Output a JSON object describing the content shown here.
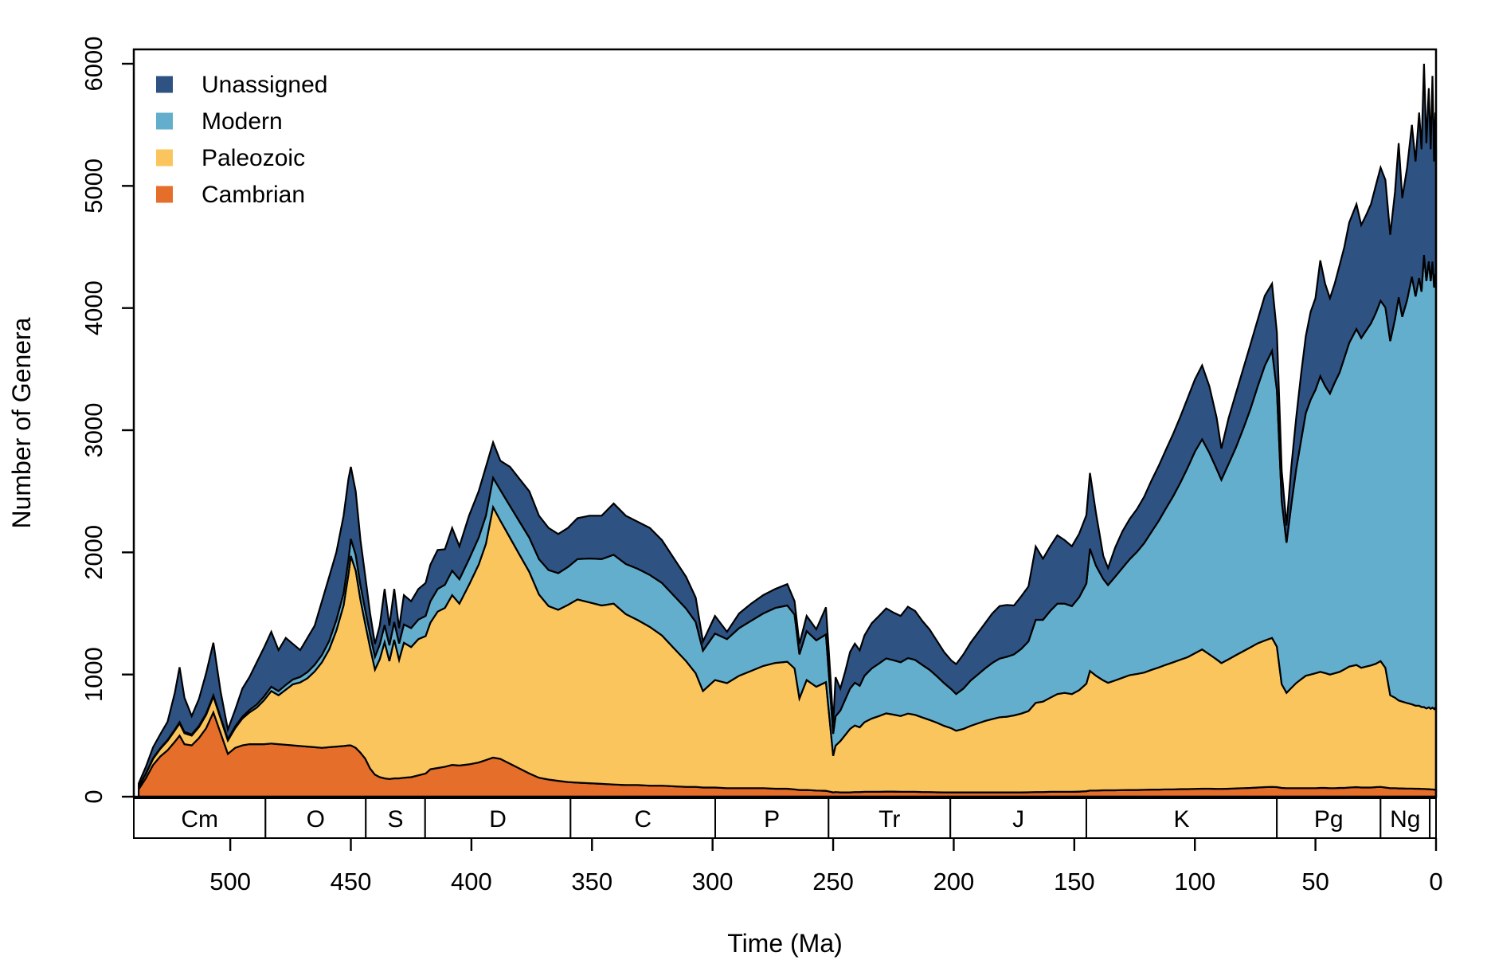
{
  "figure": {
    "background": "#ffffff",
    "frame_color": "#000000",
    "outline_color": "#000000"
  },
  "legend": {
    "position": "top-left",
    "items": [
      {
        "label": "Unassigned",
        "color": "#2E5282"
      },
      {
        "label": "Modern",
        "color": "#64AECD"
      },
      {
        "label": "Paleozoic",
        "color": "#FBC55E"
      },
      {
        "label": "Cambrian",
        "color": "#E56E2B"
      }
    ]
  },
  "axes": {
    "x": {
      "title": "Time (Ma)",
      "tick_values": [
        500,
        450,
        400,
        350,
        300,
        250,
        200,
        150,
        100,
        50,
        0
      ],
      "tick_labels": [
        "500",
        "450",
        "400",
        "350",
        "300",
        "250",
        "200",
        "150",
        "100",
        "50",
        "0"
      ]
    },
    "y": {
      "title": "Number of Genera",
      "tick_values": [
        0,
        1000,
        2000,
        3000,
        4000,
        5000,
        6000
      ],
      "tick_labels": [
        "0",
        "1000",
        "2000",
        "3000",
        "4000",
        "5000",
        "6000"
      ]
    }
  },
  "period_strip": {
    "periods": [
      {
        "label": "Cm",
        "from": 540.0,
        "to": 485.4
      },
      {
        "label": "O",
        "from": 485.4,
        "to": 443.8
      },
      {
        "label": "S",
        "from": 443.8,
        "to": 419.2
      },
      {
        "label": "D",
        "from": 419.2,
        "to": 358.9
      },
      {
        "label": "C",
        "from": 358.9,
        "to": 298.9
      },
      {
        "label": "P",
        "from": 298.9,
        "to": 251.9
      },
      {
        "label": "Tr",
        "from": 251.9,
        "to": 201.4
      },
      {
        "label": "J",
        "from": 201.4,
        "to": 145.0
      },
      {
        "label": "K",
        "from": 145.0,
        "to": 66.0
      },
      {
        "label": "Pg",
        "from": 66.0,
        "to": 23.0
      },
      {
        "label": "Ng",
        "from": 23.0,
        "to": 2.6
      },
      {
        "label": "",
        "from": 2.6,
        "to": 0.0
      }
    ]
  },
  "chart_data": {
    "type": "area",
    "stacked": true,
    "title": "",
    "xlabel": "Time (Ma)",
    "ylabel": "Number of Genera",
    "xlim": [
      540,
      0
    ],
    "ylim": [
      0,
      6120
    ],
    "x_axis_reversed": true,
    "grid": false,
    "legend_position": "top-left",
    "x_ticks": [
      500,
      450,
      400,
      350,
      300,
      250,
      200,
      150,
      100,
      50,
      0
    ],
    "y_ticks": [
      0,
      1000,
      2000,
      3000,
      4000,
      5000,
      6000
    ],
    "stack_order_bottom_to_top": [
      "Cambrian",
      "Paleozoic",
      "Modern",
      "Unassigned"
    ],
    "series_colors": {
      "Cambrian": "#E56E2B",
      "Paleozoic": "#FBC55E",
      "Modern": "#64AECD",
      "Unassigned": "#2E5282"
    },
    "columns": [
      "age_ma",
      "cambrian",
      "paleozoic",
      "modern",
      "unassigned"
    ],
    "points": [
      [
        538,
        60,
        20,
        3,
        25
      ],
      [
        535,
        150,
        35,
        4,
        55
      ],
      [
        532,
        260,
        50,
        5,
        90
      ],
      [
        529,
        330,
        62,
        5,
        115
      ],
      [
        526,
        380,
        78,
        6,
        150
      ],
      [
        523,
        450,
        92,
        8,
        300
      ],
      [
        521,
        500,
        100,
        10,
        450
      ],
      [
        519,
        430,
        90,
        10,
        280
      ],
      [
        516,
        420,
        80,
        10,
        150
      ],
      [
        513,
        480,
        90,
        10,
        220
      ],
      [
        510,
        560,
        110,
        10,
        330
      ],
      [
        507,
        690,
        130,
        10,
        430
      ],
      [
        504,
        520,
        120,
        10,
        210
      ],
      [
        501,
        350,
        110,
        10,
        80
      ],
      [
        498,
        400,
        160,
        15,
        135
      ],
      [
        495,
        420,
        220,
        15,
        230
      ],
      [
        492,
        430,
        260,
        20,
        270
      ],
      [
        489,
        430,
        300,
        25,
        345
      ],
      [
        486,
        430,
        360,
        30,
        400
      ],
      [
        483,
        435,
        430,
        35,
        450
      ],
      [
        480,
        430,
        400,
        35,
        335
      ],
      [
        477,
        425,
        450,
        40,
        385
      ],
      [
        474,
        420,
        500,
        40,
        290
      ],
      [
        471,
        415,
        520,
        45,
        220
      ],
      [
        468,
        410,
        560,
        50,
        280
      ],
      [
        465,
        405,
        620,
        55,
        320
      ],
      [
        462,
        400,
        700,
        60,
        440
      ],
      [
        459,
        405,
        800,
        70,
        525
      ],
      [
        456,
        410,
        950,
        85,
        555
      ],
      [
        453,
        415,
        1150,
        100,
        635
      ],
      [
        451,
        420,
        1400,
        120,
        660
      ],
      [
        450,
        420,
        1550,
        140,
        590
      ],
      [
        448,
        400,
        1450,
        130,
        520
      ],
      [
        446,
        360,
        1250,
        120,
        370
      ],
      [
        444,
        310,
        1100,
        115,
        275
      ],
      [
        442,
        230,
        990,
        110,
        170
      ],
      [
        440,
        180,
        860,
        105,
        105
      ],
      [
        438,
        160,
        965,
        120,
        155
      ],
      [
        436,
        150,
        1115,
        140,
        295
      ],
      [
        434,
        145,
        965,
        130,
        160
      ],
      [
        432,
        150,
        1135,
        145,
        270
      ],
      [
        430,
        150,
        970,
        135,
        125
      ],
      [
        428,
        155,
        1105,
        150,
        240
      ],
      [
        425,
        160,
        1065,
        155,
        220
      ],
      [
        422,
        175,
        1115,
        160,
        250
      ],
      [
        419,
        190,
        1125,
        165,
        270
      ],
      [
        417,
        225,
        1200,
        175,
        300
      ],
      [
        414,
        235,
        1280,
        185,
        320
      ],
      [
        411,
        245,
        1300,
        190,
        290
      ],
      [
        408,
        260,
        1390,
        200,
        350
      ],
      [
        405,
        255,
        1325,
        200,
        270
      ],
      [
        401,
        265,
        1470,
        210,
        355
      ],
      [
        397,
        280,
        1620,
        220,
        380
      ],
      [
        394,
        300,
        1770,
        230,
        400
      ],
      [
        391,
        320,
        2050,
        240,
        290
      ],
      [
        388,
        310,
        1950,
        250,
        240
      ],
      [
        384,
        270,
        1850,
        260,
        320
      ],
      [
        380,
        230,
        1750,
        270,
        350
      ],
      [
        376,
        190,
        1650,
        280,
        380
      ],
      [
        372,
        155,
        1500,
        290,
        355
      ],
      [
        368,
        140,
        1420,
        295,
        345
      ],
      [
        364,
        130,
        1400,
        300,
        320
      ],
      [
        360,
        120,
        1450,
        310,
        320
      ],
      [
        356,
        115,
        1500,
        330,
        335
      ],
      [
        351,
        110,
        1480,
        360,
        350
      ],
      [
        346,
        105,
        1460,
        380,
        355
      ],
      [
        341,
        100,
        1480,
        400,
        420
      ],
      [
        336,
        95,
        1400,
        410,
        395
      ],
      [
        331,
        95,
        1350,
        420,
        385
      ],
      [
        326,
        90,
        1300,
        425,
        385
      ],
      [
        321,
        90,
        1230,
        430,
        350
      ],
      [
        316,
        85,
        1130,
        430,
        305
      ],
      [
        311,
        80,
        1030,
        430,
        260
      ],
      [
        307,
        80,
        930,
        420,
        200
      ],
      [
        304,
        75,
        790,
        330,
        75
      ],
      [
        299,
        75,
        880,
        380,
        145
      ],
      [
        294,
        70,
        860,
        360,
        60
      ],
      [
        289,
        70,
        920,
        390,
        120
      ],
      [
        284,
        70,
        960,
        410,
        140
      ],
      [
        279,
        70,
        1000,
        430,
        150
      ],
      [
        274,
        65,
        1030,
        450,
        155
      ],
      [
        269,
        65,
        1040,
        460,
        175
      ],
      [
        266,
        60,
        990,
        440,
        110
      ],
      [
        264,
        55,
        750,
        360,
        85
      ],
      [
        261,
        55,
        900,
        400,
        125
      ],
      [
        257,
        50,
        850,
        380,
        90
      ],
      [
        253,
        48,
        890,
        390,
        222
      ],
      [
        251,
        40,
        500,
        260,
        150
      ],
      [
        250,
        35,
        300,
        180,
        85
      ],
      [
        249,
        38,
        380,
        240,
        320
      ],
      [
        247,
        35,
        420,
        250,
        180
      ],
      [
        245,
        35,
        470,
        290,
        230
      ],
      [
        243,
        35,
        520,
        330,
        300
      ],
      [
        241,
        38,
        545,
        350,
        320
      ],
      [
        239,
        38,
        530,
        340,
        290
      ],
      [
        237,
        40,
        570,
        380,
        330
      ],
      [
        234,
        40,
        600,
        410,
        370
      ],
      [
        231,
        40,
        620,
        430,
        390
      ],
      [
        228,
        42,
        640,
        450,
        410
      ],
      [
        225,
        42,
        630,
        445,
        390
      ],
      [
        222,
        40,
        620,
        440,
        380
      ],
      [
        219,
        40,
        640,
        455,
        420
      ],
      [
        216,
        40,
        630,
        450,
        400
      ],
      [
        213,
        38,
        610,
        430,
        360
      ],
      [
        210,
        38,
        590,
        410,
        330
      ],
      [
        207,
        36,
        570,
        380,
        290
      ],
      [
        204,
        35,
        545,
        350,
        255
      ],
      [
        201,
        35,
        525,
        320,
        235
      ],
      [
        199,
        35,
        505,
        300,
        245
      ],
      [
        196,
        35,
        520,
        330,
        280
      ],
      [
        193,
        35,
        545,
        370,
        310
      ],
      [
        190,
        35,
        565,
        400,
        340
      ],
      [
        187,
        35,
        585,
        430,
        370
      ],
      [
        184,
        35,
        600,
        460,
        405
      ],
      [
        181,
        35,
        615,
        480,
        430
      ],
      [
        178,
        35,
        620,
        490,
        425
      ],
      [
        175,
        35,
        630,
        500,
        400
      ],
      [
        172,
        35,
        645,
        530,
        430
      ],
      [
        169,
        36,
        665,
        570,
        450
      ],
      [
        166,
        38,
        730,
        680,
        600
      ],
      [
        163,
        38,
        740,
        670,
        500
      ],
      [
        160,
        40,
        770,
        710,
        530
      ],
      [
        157,
        40,
        800,
        740,
        560
      ],
      [
        154,
        40,
        810,
        730,
        520
      ],
      [
        151,
        40,
        800,
        720,
        490
      ],
      [
        148,
        42,
        830,
        760,
        520
      ],
      [
        145,
        45,
        880,
        820,
        560
      ],
      [
        143.5,
        50,
        980,
        1000,
        620
      ],
      [
        141,
        50,
        940,
        900,
        430
      ],
      [
        138,
        52,
        900,
        830,
        190
      ],
      [
        136,
        52,
        880,
        800,
        140
      ],
      [
        133,
        52,
        900,
        850,
        240
      ],
      [
        130,
        54,
        920,
        900,
        300
      ],
      [
        127,
        55,
        940,
        950,
        330
      ],
      [
        124,
        55,
        950,
        1000,
        350
      ],
      [
        121,
        56,
        960,
        1060,
        380
      ],
      [
        118,
        58,
        980,
        1130,
        420
      ],
      [
        115,
        58,
        1000,
        1200,
        450
      ],
      [
        112,
        60,
        1020,
        1280,
        480
      ],
      [
        109,
        60,
        1040,
        1360,
        510
      ],
      [
        106,
        62,
        1060,
        1450,
        540
      ],
      [
        103,
        62,
        1080,
        1550,
        570
      ],
      [
        100,
        64,
        1110,
        1650,
        590
      ],
      [
        97,
        65,
        1140,
        1720,
        605
      ],
      [
        94,
        65,
        1100,
        1650,
        545
      ],
      [
        91,
        64,
        1060,
        1560,
        420
      ],
      [
        89,
        64,
        1030,
        1500,
        256
      ],
      [
        86,
        65,
        1060,
        1600,
        375
      ],
      [
        83,
        68,
        1090,
        1700,
        442
      ],
      [
        80,
        70,
        1120,
        1820,
        490
      ],
      [
        77,
        72,
        1150,
        1950,
        528
      ],
      [
        74,
        75,
        1180,
        2100,
        545
      ],
      [
        71,
        78,
        1200,
        2250,
        572
      ],
      [
        68,
        80,
        1220,
        2350,
        550
      ],
      [
        66,
        78,
        1150,
        2100,
        472
      ],
      [
        64,
        72,
        850,
        1500,
        250
      ],
      [
        62,
        70,
        780,
        1230,
        140
      ],
      [
        60,
        70,
        820,
        1500,
        310
      ],
      [
        58,
        70,
        860,
        1750,
        420
      ],
      [
        56,
        70,
        890,
        1950,
        540
      ],
      [
        54,
        70,
        920,
        2150,
        630
      ],
      [
        52,
        70,
        930,
        2250,
        720
      ],
      [
        50,
        70,
        940,
        2320,
        750
      ],
      [
        48,
        72,
        950,
        2420,
        948
      ],
      [
        46,
        72,
        940,
        2350,
        838
      ],
      [
        44,
        70,
        930,
        2300,
        780
      ],
      [
        42,
        70,
        940,
        2380,
        810
      ],
      [
        40,
        72,
        950,
        2450,
        878
      ],
      [
        38,
        72,
        970,
        2550,
        908
      ],
      [
        36,
        75,
        990,
        2650,
        985
      ],
      [
        33,
        78,
        1000,
        2750,
        1022
      ],
      [
        31,
        75,
        980,
        2700,
        925
      ],
      [
        29,
        75,
        990,
        2750,
        945
      ],
      [
        27,
        75,
        1000,
        2800,
        975
      ],
      [
        25,
        78,
        1010,
        2870,
        1042
      ],
      [
        23,
        80,
        1030,
        2950,
        1090
      ],
      [
        21,
        75,
        980,
        2950,
        1045
      ],
      [
        19,
        70,
        760,
        2900,
        870
      ],
      [
        17,
        70,
        740,
        3100,
        1040
      ],
      [
        15.5,
        68,
        720,
        3300,
        1262
      ],
      [
        14,
        68,
        710,
        3150,
        972
      ],
      [
        12,
        66,
        700,
        3300,
        1084
      ],
      [
        10,
        66,
        690,
        3500,
        1244
      ],
      [
        8.5,
        65,
        680,
        3350,
        1105
      ],
      [
        7,
        65,
        680,
        3500,
        1355
      ],
      [
        6,
        64,
        670,
        3400,
        1166
      ],
      [
        5,
        64,
        670,
        3700,
        1566
      ],
      [
        4,
        62,
        660,
        3500,
        1128
      ],
      [
        3,
        62,
        670,
        3650,
        1418
      ],
      [
        2.2,
        60,
        660,
        3500,
        1080
      ],
      [
        1.5,
        60,
        670,
        3650,
        1520
      ],
      [
        0.8,
        58,
        660,
        3450,
        1032
      ],
      [
        0.3,
        58,
        670,
        3550,
        1322
      ],
      [
        0,
        55,
        645,
        3500,
        1100
      ]
    ]
  }
}
